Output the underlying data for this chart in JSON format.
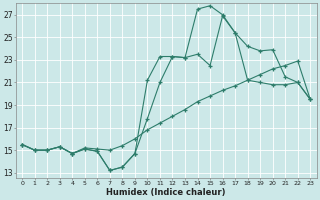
{
  "xlabel": "Humidex (Indice chaleur)",
  "bg_color": "#cce8e8",
  "grid_color": "#b0d0d0",
  "line_color": "#2e7d6b",
  "xlim": [
    -0.5,
    23.5
  ],
  "ylim": [
    12.5,
    28.0
  ],
  "xticks": [
    0,
    1,
    2,
    3,
    4,
    5,
    6,
    7,
    8,
    9,
    10,
    11,
    12,
    13,
    14,
    15,
    16,
    17,
    18,
    19,
    20,
    21,
    22,
    23
  ],
  "yticks": [
    13,
    15,
    17,
    19,
    21,
    23,
    25,
    27
  ],
  "line1_x": [
    0,
    1,
    2,
    3,
    4,
    5,
    6,
    7,
    8,
    9,
    10,
    11,
    12,
    13,
    14,
    15,
    16,
    17,
    18,
    19,
    20,
    21,
    22,
    23
  ],
  "line1_y": [
    15.5,
    15.0,
    15.0,
    15.3,
    14.7,
    15.2,
    15.1,
    15.0,
    15.4,
    16.0,
    16.8,
    17.4,
    18.0,
    18.6,
    19.3,
    19.8,
    20.3,
    20.7,
    21.2,
    21.7,
    22.2,
    22.5,
    22.9,
    19.5
  ],
  "line2_x": [
    0,
    1,
    2,
    3,
    4,
    5,
    6,
    7,
    8,
    9,
    10,
    11,
    12,
    13,
    14,
    15,
    16,
    17,
    18,
    19,
    20,
    21,
    22,
    23
  ],
  "line2_y": [
    15.5,
    15.0,
    15.0,
    15.3,
    14.7,
    15.1,
    14.9,
    13.2,
    13.5,
    14.7,
    21.2,
    23.3,
    23.3,
    23.2,
    27.5,
    27.8,
    27.0,
    25.4,
    21.2,
    21.0,
    20.8,
    20.8,
    21.0,
    19.5
  ],
  "line3_x": [
    0,
    1,
    2,
    3,
    4,
    5,
    6,
    7,
    8,
    9,
    10,
    11,
    12,
    13,
    14,
    15,
    16,
    17,
    18,
    19,
    20,
    21,
    22,
    23
  ],
  "line3_y": [
    15.5,
    15.0,
    15.0,
    15.3,
    14.7,
    15.1,
    14.9,
    13.2,
    13.5,
    14.7,
    17.8,
    21.0,
    23.3,
    23.2,
    23.5,
    22.5,
    26.9,
    25.4,
    24.2,
    23.8,
    23.9,
    21.5,
    21.0,
    19.5
  ]
}
